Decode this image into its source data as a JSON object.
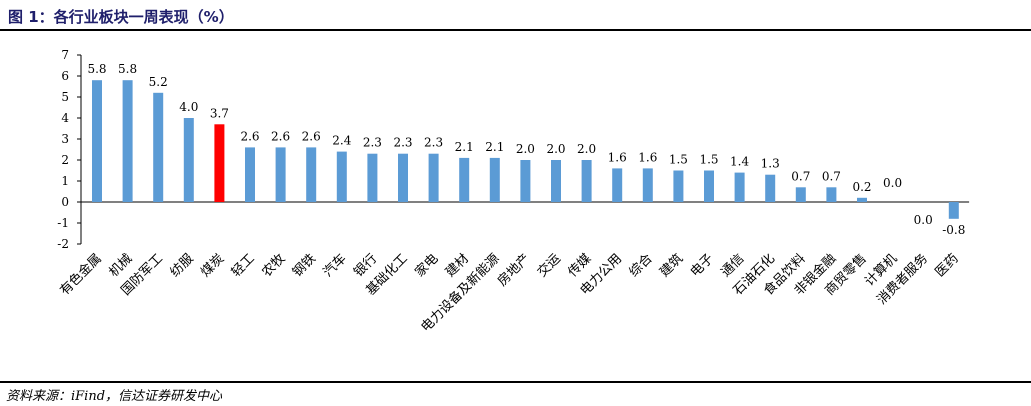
{
  "header": {
    "title": "图 1：各行业板块一周表现（%）"
  },
  "source": {
    "text": "资料来源：iFind，信达证券研发中心"
  },
  "colors": {
    "bar": "#5b9bd5",
    "highlight": "#ff0000",
    "axis": "#000000"
  },
  "chart_data": {
    "type": "bar",
    "categories": [
      "有色金属",
      "机械",
      "国防军工",
      "纺服",
      "煤炭",
      "轻工",
      "农牧",
      "钢铁",
      "汽车",
      "银行",
      "基础化工",
      "家电",
      "建材",
      "电力设备及新能源",
      "房地产",
      "交运",
      "传媒",
      "电力公用",
      "综合",
      "建筑",
      "电子",
      "通信",
      "石油石化",
      "食品饮料",
      "非银金融",
      "商贸零售",
      "计算机",
      "消费者服务",
      "医药"
    ],
    "values": [
      5.8,
      5.8,
      5.2,
      4.0,
      3.7,
      2.6,
      2.6,
      2.6,
      2.4,
      2.3,
      2.3,
      2.3,
      2.1,
      2.1,
      2.0,
      2.0,
      2.0,
      1.6,
      1.6,
      1.5,
      1.5,
      1.4,
      1.3,
      0.7,
      0.7,
      0.2,
      0.0,
      0.0,
      -0.8
    ],
    "value_labels": [
      "5.8",
      "5.8",
      "5.2",
      "4.0",
      "3.7",
      "2.6",
      "2.6",
      "2.6",
      "2.4",
      "2.3",
      "2.3",
      "2.3",
      "2.1",
      "2.1",
      "2.0",
      "2.0",
      "2.0",
      "1.6",
      "1.6",
      "1.5",
      "1.5",
      "1.4",
      "1.3",
      "0.7",
      "0.7",
      "0.2",
      "0.0",
      "0.0",
      "-0.8"
    ],
    "highlight_category": "煤炭",
    "ylim": [
      -2,
      7
    ],
    "yticks": [
      -2,
      -1,
      0,
      1,
      2,
      3,
      4,
      5,
      6,
      7
    ],
    "grid": false,
    "legend": "none"
  }
}
